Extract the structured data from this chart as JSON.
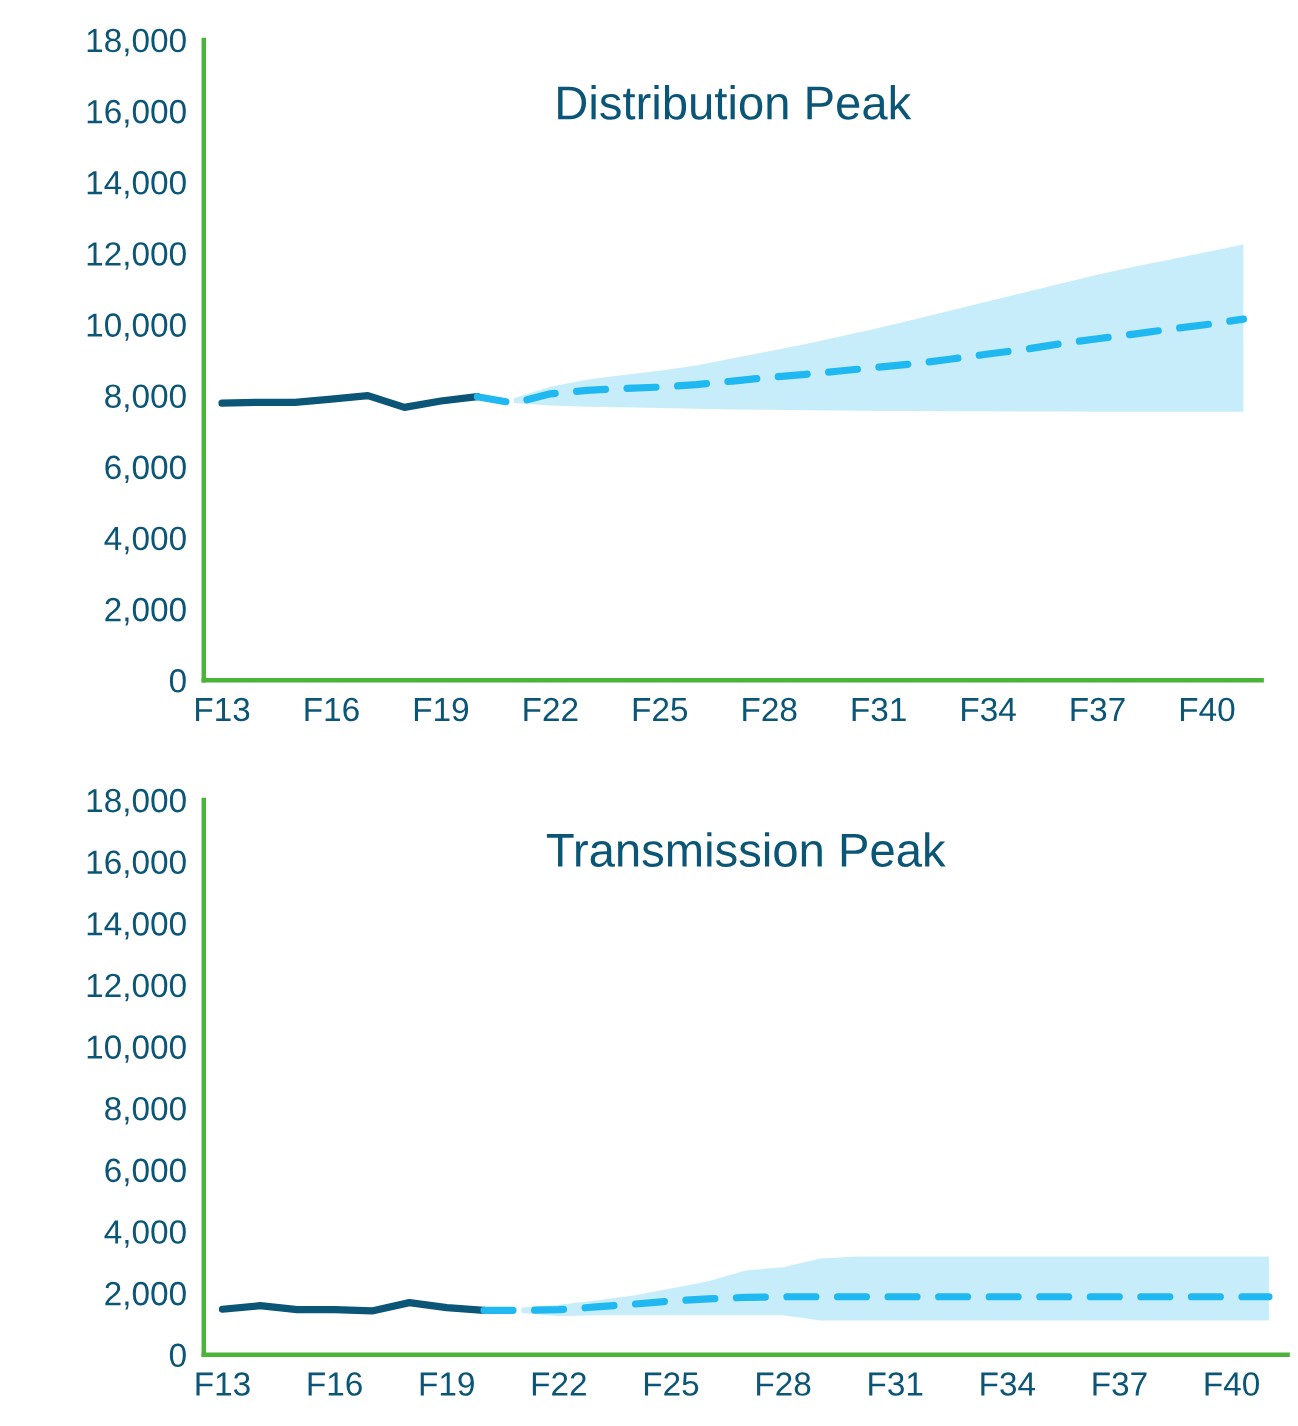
{
  "chart_data": [
    {
      "type": "line",
      "title": "Distribution Peak",
      "categories": [
        "F13",
        null,
        null,
        "F16",
        null,
        null,
        "F19",
        null,
        null,
        "F22",
        null,
        null,
        "F25",
        null,
        null,
        "F28",
        null,
        null,
        "F31",
        null,
        null,
        "F34",
        null,
        null,
        "F37",
        null,
        null,
        "F40",
        null
      ],
      "series": [
        {
          "color": "#0b5577",
          "line_style": "solid",
          "values": [
            7790,
            7810,
            7810,
            7900,
            8000,
            7670,
            7850,
            7970,
            null,
            null,
            null,
            null,
            null,
            null,
            null,
            null,
            null,
            null,
            null,
            null,
            null,
            null,
            null,
            null,
            null,
            null,
            null,
            null,
            null
          ]
        },
        {
          "color": "#1fb8f0",
          "line_style": "dashed",
          "values": [
            null,
            null,
            null,
            null,
            null,
            null,
            null,
            7970,
            7790,
            8050,
            8150,
            8200,
            8240,
            8310,
            8410,
            8510,
            8600,
            8700,
            8800,
            8900,
            9030,
            9170,
            9300,
            9460,
            9600,
            9730,
            9870,
            10000,
            10150
          ],
          "lower": [
            null,
            null,
            null,
            null,
            null,
            null,
            null,
            null,
            7790,
            7720,
            7690,
            7670,
            7650,
            7630,
            7610,
            7600,
            7590,
            7580,
            7570,
            7565,
            7560,
            7560,
            7555,
            7555,
            7550,
            7550,
            7550,
            7550,
            7550
          ],
          "upper": [
            null,
            null,
            null,
            null,
            null,
            null,
            null,
            null,
            7930,
            8250,
            8450,
            8580,
            8700,
            8850,
            9050,
            9250,
            9450,
            9680,
            9900,
            10150,
            10400,
            10650,
            10900,
            11150,
            11400,
            11620,
            11830,
            12040,
            12250
          ]
        }
      ],
      "ylim": [
        0,
        18000
      ],
      "yticks": [
        0,
        {
          "value": 2000,
          "label": "2,000"
        },
        {
          "value": 4000,
          "label": "4,000"
        },
        {
          "value": 6000,
          "label": "6,000"
        },
        {
          "value": 8000,
          "label": "8,000"
        },
        {
          "value": 10000,
          "label": "10,000"
        },
        {
          "value": 12000,
          "label": "12,000"
        },
        {
          "value": 14000,
          "label": "14,000"
        },
        {
          "value": 16000,
          "label": "16,000"
        },
        {
          "value": 18000,
          "label": "18,000"
        }
      ],
      "grid": false,
      "legend": false,
      "marker": "none"
    },
    {
      "type": "line",
      "title": "Transmission Peak",
      "categories": [
        "F13",
        null,
        null,
        "F16",
        null,
        null,
        "F19",
        null,
        null,
        "F22",
        null,
        null,
        "F25",
        null,
        null,
        "F28",
        null,
        null,
        "F31",
        null,
        null,
        "F34",
        null,
        null,
        "F37",
        null,
        null,
        "F40",
        null
      ],
      "series": [
        {
          "color": "#0b5577",
          "line_style": "solid",
          "values": [
            1475,
            1590,
            1460,
            1460,
            1420,
            1690,
            1530,
            1440,
            null,
            null,
            null,
            null,
            null,
            null,
            null,
            null,
            null,
            null,
            null,
            null,
            null,
            null,
            null,
            null,
            null,
            null,
            null,
            null,
            null
          ]
        },
        {
          "color": "#1fb8f0",
          "line_style": "dashed",
          "values": [
            null,
            null,
            null,
            null,
            null,
            null,
            null,
            1440,
            1440,
            1460,
            1550,
            1640,
            1740,
            1810,
            1860,
            1880,
            1880,
            1880,
            1880,
            1880,
            1880,
            1880,
            1880,
            1880,
            1880,
            1880,
            1880,
            1880,
            1880
          ],
          "lower": [
            null,
            null,
            null,
            null,
            null,
            null,
            null,
            null,
            1350,
            1250,
            1280,
            1280,
            1280,
            1280,
            1280,
            1280,
            1110,
            1110,
            1110,
            1110,
            1110,
            1110,
            1110,
            1110,
            1110,
            1110,
            1110,
            1110,
            1110
          ],
          "upper": [
            null,
            null,
            null,
            null,
            null,
            null,
            null,
            null,
            1530,
            1620,
            1760,
            1920,
            2150,
            2380,
            2730,
            2840,
            3120,
            3190,
            3190,
            3190,
            3190,
            3190,
            3190,
            3190,
            3190,
            3190,
            3190,
            3190,
            3190
          ]
        }
      ],
      "ylim": [
        0,
        18000
      ],
      "yticks": [
        0,
        {
          "value": 2000,
          "label": "2,000"
        },
        {
          "value": 4000,
          "label": "4,000"
        },
        {
          "value": 6000,
          "label": "6,000"
        },
        {
          "value": 8000,
          "label": "8,000"
        },
        {
          "value": 10000,
          "label": "10,000"
        },
        {
          "value": 12000,
          "label": "12,000"
        },
        {
          "value": 14000,
          "label": "14,000"
        },
        {
          "value": 16000,
          "label": "16,000"
        },
        {
          "value": 18000,
          "label": "18,000"
        }
      ],
      "grid": false,
      "legend": false,
      "marker": "none"
    }
  ]
}
